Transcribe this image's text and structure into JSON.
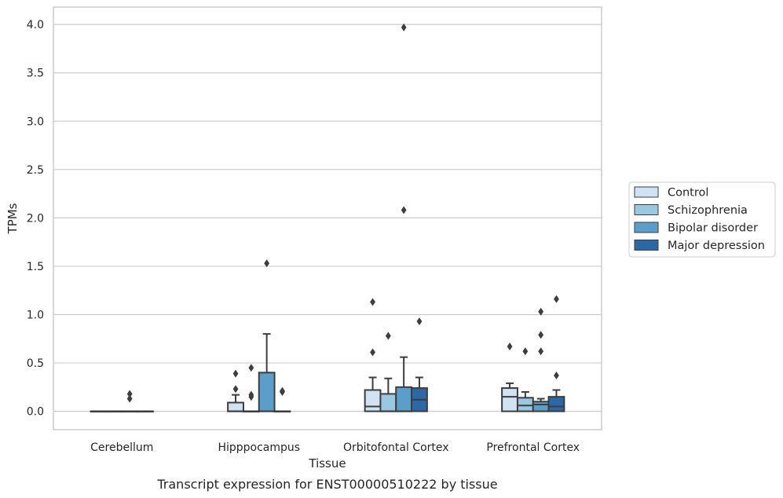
{
  "chart_data": {
    "type": "box",
    "xlabel": "Tissue",
    "ylabel": "TPMs",
    "caption": "Transcript expression for ENST00000510222 by tissue",
    "ylim": [
      -0.19,
      4.18
    ],
    "yticks": [
      "0.0",
      "0.5",
      "1.0",
      "1.5",
      "2.0",
      "2.5",
      "3.0",
      "3.5",
      "4.0"
    ],
    "grid": "horizontal",
    "legend_position": "right",
    "categories": [
      "Cerebellum",
      "Hipppocampus",
      "Orbitofontal Cortex",
      "Prefrontal Cortex"
    ],
    "series": [
      {
        "name": "Control",
        "color": "#d1e2f2",
        "boxes": [
          {
            "q1": 0,
            "median": 0,
            "q3": 0,
            "whisker_low": 0,
            "whisker_high": 0,
            "outliers": []
          },
          {
            "q1": 0,
            "median": 0,
            "q3": 0.09,
            "whisker_low": 0,
            "whisker_high": 0.17,
            "outliers": [
              0.23,
              0.39
            ]
          },
          {
            "q1": 0,
            "median": 0.05,
            "q3": 0.22,
            "whisker_low": 0,
            "whisker_high": 0.35,
            "outliers": [
              0.61,
              1.13
            ]
          },
          {
            "q1": 0,
            "median": 0.15,
            "q3": 0.24,
            "whisker_low": 0,
            "whisker_high": 0.29,
            "outliers": [
              0.67
            ]
          }
        ]
      },
      {
        "name": "Schizophrenia",
        "color": "#9ac8e0",
        "boxes": [
          {
            "q1": 0,
            "median": 0,
            "q3": 0,
            "whisker_low": 0,
            "whisker_high": 0,
            "outliers": []
          },
          {
            "q1": 0,
            "median": 0,
            "q3": 0,
            "whisker_low": 0,
            "whisker_high": 0,
            "outliers": [
              0.15,
              0.17,
              0.45
            ]
          },
          {
            "q1": 0,
            "median": 0,
            "q3": 0.18,
            "whisker_low": 0,
            "whisker_high": 0.34,
            "outliers": [
              0.78
            ]
          },
          {
            "q1": 0,
            "median": 0.06,
            "q3": 0.14,
            "whisker_low": 0,
            "whisker_high": 0.2,
            "outliers": [
              0.62
            ]
          }
        ]
      },
      {
        "name": "Bipolar disorder",
        "color": "#5a9fca",
        "boxes": [
          {
            "q1": 0,
            "median": 0,
            "q3": 0,
            "whisker_low": 0,
            "whisker_high": 0,
            "outliers": [
              0.13,
              0.18
            ]
          },
          {
            "q1": 0,
            "median": 0,
            "q3": 0.4,
            "whisker_low": 0,
            "whisker_high": 0.8,
            "outliers": [
              1.53
            ]
          },
          {
            "q1": 0,
            "median": 0,
            "q3": 0.25,
            "whisker_low": 0,
            "whisker_high": 0.56,
            "outliers": [
              2.08,
              3.97
            ]
          },
          {
            "q1": 0,
            "median": 0.07,
            "q3": 0.1,
            "whisker_low": 0,
            "whisker_high": 0.13,
            "outliers": [
              0.62,
              0.79,
              1.03
            ]
          }
        ]
      },
      {
        "name": "Major depression",
        "color": "#2a68a8",
        "boxes": [
          {
            "q1": 0,
            "median": 0,
            "q3": 0,
            "whisker_low": 0,
            "whisker_high": 0,
            "outliers": []
          },
          {
            "q1": 0,
            "median": 0,
            "q3": 0,
            "whisker_low": 0,
            "whisker_high": 0,
            "outliers": [
              0.2,
              0.21
            ]
          },
          {
            "q1": 0,
            "median": 0.12,
            "q3": 0.24,
            "whisker_low": 0,
            "whisker_high": 0.35,
            "outliers": [
              0.93
            ]
          },
          {
            "q1": 0,
            "median": 0.05,
            "q3": 0.15,
            "whisker_low": 0,
            "whisker_high": 0.22,
            "outliers": [
              0.37,
              1.16
            ]
          }
        ]
      }
    ]
  }
}
